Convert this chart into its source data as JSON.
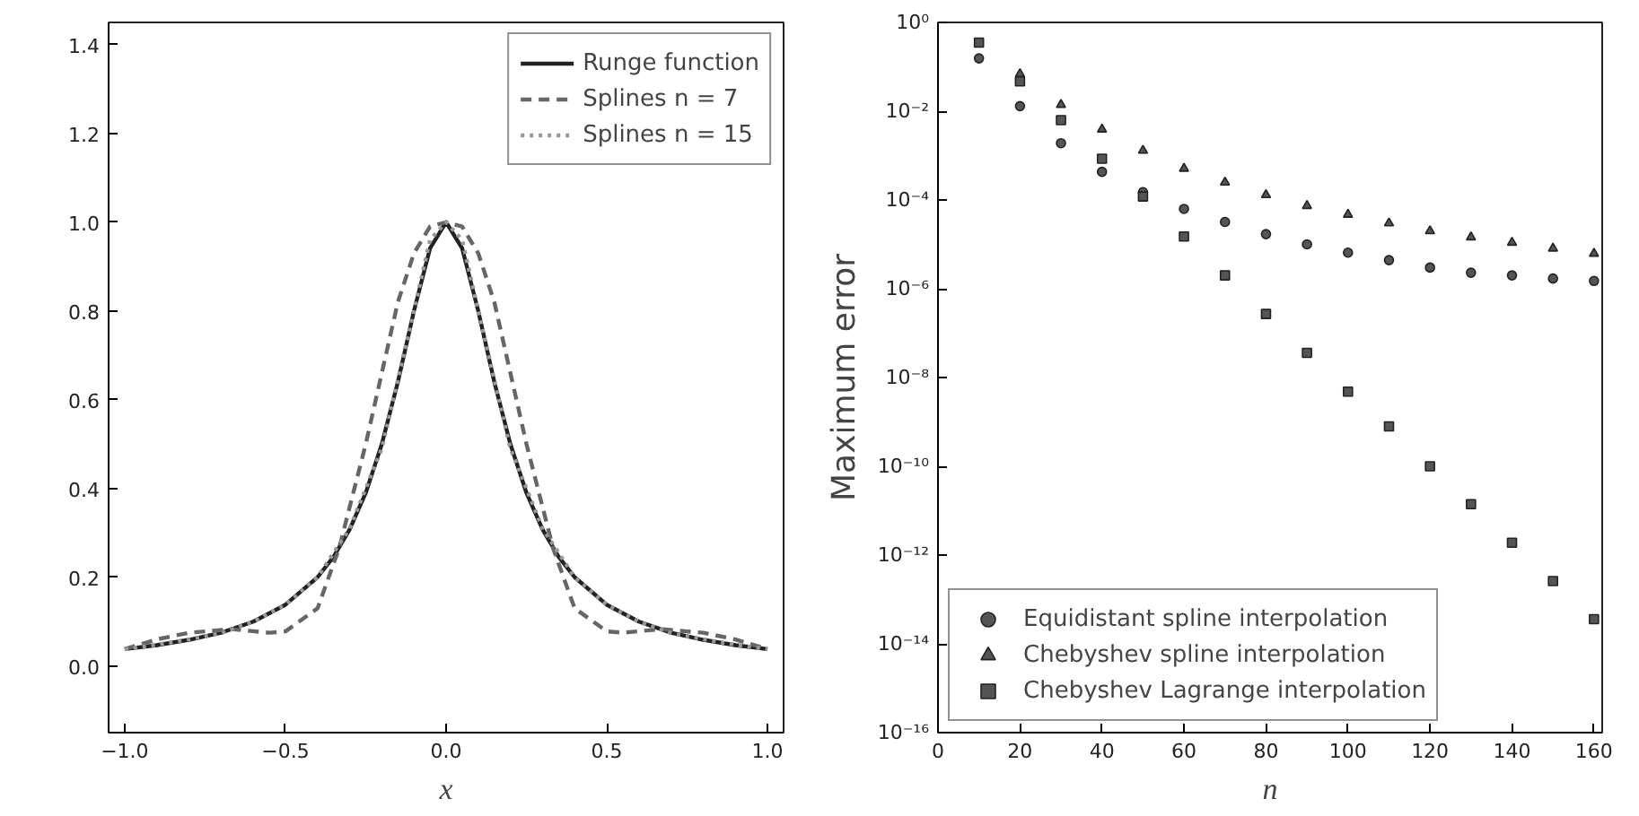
{
  "chart_data": [
    {
      "type": "line",
      "xlabel": "x",
      "xlim": [
        -1.05,
        1.05
      ],
      "ylim": [
        -0.15,
        1.45
      ],
      "xticks": [
        {
          "value": -1.0,
          "label": "−1.0"
        },
        {
          "value": -0.5,
          "label": "−0.5"
        },
        {
          "value": 0.0,
          "label": "0.0"
        },
        {
          "value": 0.5,
          "label": "0.5"
        },
        {
          "value": 1.0,
          "label": "1.0"
        }
      ],
      "yticks": [
        {
          "value": 0.0,
          "label": "0.0"
        },
        {
          "value": 0.2,
          "label": "0.2"
        },
        {
          "value": 0.4,
          "label": "0.4"
        },
        {
          "value": 0.6,
          "label": "0.6"
        },
        {
          "value": 0.8,
          "label": "0.8"
        },
        {
          "value": 1.0,
          "label": "1.0"
        },
        {
          "value": 1.2,
          "label": "1.2"
        },
        {
          "value": 1.4,
          "label": "1.4"
        }
      ],
      "legend": "top right",
      "series": [
        {
          "name": "Runge function",
          "color": "#222222",
          "line_style": "solid",
          "x": [
            -1,
            -0.9,
            -0.8,
            -0.7,
            -0.6,
            -0.5,
            -0.4,
            -0.35,
            -0.3,
            -0.25,
            -0.2,
            -0.15,
            -0.1,
            -0.05,
            0,
            0.05,
            0.1,
            0.15,
            0.2,
            0.25,
            0.3,
            0.35,
            0.4,
            0.5,
            0.6,
            0.7,
            0.8,
            0.9,
            1
          ],
          "values": [
            0.038,
            0.047,
            0.059,
            0.075,
            0.1,
            0.138,
            0.2,
            0.246,
            0.308,
            0.39,
            0.5,
            0.64,
            0.8,
            0.941,
            1.0,
            0.941,
            0.8,
            0.64,
            0.5,
            0.39,
            0.308,
            0.246,
            0.2,
            0.138,
            0.1,
            0.075,
            0.059,
            0.047,
            0.038
          ]
        },
        {
          "name": "Splines n = 7",
          "color": "#666666",
          "line_style": "dashed",
          "x": [
            -1,
            -0.9,
            -0.8,
            -0.667,
            -0.55,
            -0.5,
            -0.4,
            -0.333,
            -0.25,
            -0.2,
            -0.15,
            -0.1,
            -0.05,
            0,
            0.05,
            0.1,
            0.15,
            0.2,
            0.25,
            0.333,
            0.4,
            0.5,
            0.55,
            0.667,
            0.8,
            0.9,
            1
          ],
          "values": [
            0.038,
            0.06,
            0.075,
            0.083,
            0.075,
            0.078,
            0.13,
            0.265,
            0.5,
            0.66,
            0.82,
            0.93,
            0.99,
            1.0,
            0.99,
            0.93,
            0.82,
            0.66,
            0.5,
            0.265,
            0.13,
            0.078,
            0.075,
            0.083,
            0.075,
            0.06,
            0.038
          ]
        },
        {
          "name": "Splines n = 15",
          "color": "#999999",
          "line_style": "dotted",
          "x": [
            -1,
            -0.9,
            -0.8,
            -0.7,
            -0.6,
            -0.5,
            -0.4,
            -0.3,
            -0.2,
            -0.1,
            -0.05,
            0,
            0.05,
            0.1,
            0.2,
            0.3,
            0.4,
            0.5,
            0.6,
            0.7,
            0.8,
            0.9,
            1
          ],
          "values": [
            0.038,
            0.048,
            0.06,
            0.074,
            0.1,
            0.138,
            0.2,
            0.31,
            0.49,
            0.8,
            0.96,
            1.0,
            0.96,
            0.8,
            0.49,
            0.31,
            0.2,
            0.138,
            0.1,
            0.074,
            0.06,
            0.048,
            0.038
          ]
        }
      ]
    },
    {
      "type": "scatter",
      "xlabel": "n",
      "ylabel": "Maximum error",
      "log": "y",
      "xlim": [
        0,
        162
      ],
      "ylim": [
        1e-16,
        1
      ],
      "xticks": [
        0,
        20,
        40,
        60,
        80,
        100,
        120,
        140,
        160
      ],
      "yticks": [
        {
          "value": 1e-16,
          "label": "10⁻¹⁶"
        },
        {
          "value": 1e-14,
          "label": "10⁻¹⁴"
        },
        {
          "value": 1e-12,
          "label": "10⁻¹²"
        },
        {
          "value": 1e-10,
          "label": "10⁻¹⁰"
        },
        {
          "value": 1e-08,
          "label": "10⁻⁸"
        },
        {
          "value": 1e-06,
          "label": "10⁻⁶"
        },
        {
          "value": 0.0001,
          "label": "10⁻⁴"
        },
        {
          "value": 0.01,
          "label": "10⁻²"
        },
        {
          "value": 1,
          "label": "10⁰"
        }
      ],
      "legend": "bottom left",
      "x": [
        10,
        20,
        30,
        40,
        50,
        60,
        70,
        80,
        90,
        100,
        110,
        120,
        130,
        140,
        150,
        160
      ],
      "series": [
        {
          "name": "Equidistant spline interpolation",
          "color": "#555555",
          "marker": "circle",
          "values": [
            0.155,
            0.013,
            0.0019,
            0.00043,
            0.00015,
            6.3e-05,
            3.2e-05,
            1.7e-05,
            1e-05,
            6.5e-06,
            4.4e-06,
            3e-06,
            2.3e-06,
            2e-06,
            1.7e-06,
            1.5e-06
          ]
        },
        {
          "name": "Chebyshev spline interpolation",
          "color": "#555555",
          "marker": "triangle",
          "values": [
            null,
            0.069,
            0.014,
            0.0039,
            0.0013,
            0.00051,
            0.00025,
            0.00013,
            7.4e-05,
            4.7e-05,
            3e-05,
            2e-05,
            1.45e-05,
            1.1e-05,
            8.1e-06,
            6.2e-06
          ]
        },
        {
          "name": "Chebyshev Lagrange interpolation",
          "color": "#555555",
          "marker": "square",
          "values": [
            0.35,
            0.047,
            0.0063,
            0.00085,
            0.00012,
            1.5e-05,
            2e-06,
            2.7e-07,
            3.6e-08,
            4.8e-09,
            7.9e-10,
            1e-10,
            1.4e-11,
            1.9e-12,
            2.6e-13,
            3.6e-14
          ]
        }
      ]
    }
  ]
}
